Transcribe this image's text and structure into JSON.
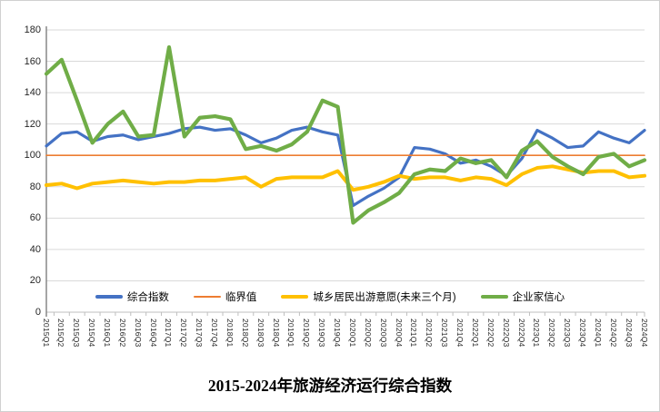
{
  "chart_data": {
    "type": "line",
    "title": "2015-2024年旅游经济运行综合指数",
    "xlabel": "",
    "ylabel": "",
    "ylim": [
      0,
      180
    ],
    "ytick_step": 20,
    "y_ticks": [
      "0",
      "20",
      "40",
      "60",
      "80",
      "100",
      "120",
      "140",
      "160",
      "180"
    ],
    "grid": true,
    "legend_position": "bottom-inside-horizontal",
    "x_label_rotation_deg": 90,
    "categories": [
      "2015Q1",
      "2015Q2",
      "2015Q3",
      "2015Q4",
      "2016Q1",
      "2016Q2",
      "2016Q3",
      "2016Q4",
      "2017Q1",
      "2017Q2",
      "2017Q3",
      "2017Q4",
      "2018Q1",
      "2018Q2",
      "2018Q3",
      "2018Q4",
      "2019Q1",
      "2019Q2",
      "2019Q3",
      "2019Q4",
      "2020Q1",
      "2020Q2",
      "2020Q3",
      "2020Q4",
      "2021Q1",
      "2021Q2",
      "2021Q3",
      "2021Q4",
      "2022Q1",
      "2022Q2",
      "2022Q3",
      "2022Q4",
      "2023Q1",
      "2023Q2",
      "2023Q3",
      "2023Q4",
      "2024Q1",
      "2024Q2",
      "2024Q3",
      "2024Q4"
    ],
    "series": [
      {
        "name": "综合指数",
        "color": "#4472C4",
        "line_width": 3.2,
        "values": [
          106,
          114,
          115,
          109,
          112,
          113,
          110,
          112,
          114,
          117,
          118,
          116,
          117,
          113,
          108,
          111,
          116,
          118,
          115,
          113,
          68,
          74,
          79,
          86,
          105,
          104,
          101,
          95,
          97,
          93,
          87,
          98,
          116,
          111,
          105,
          106,
          115,
          111,
          108,
          116
        ]
      },
      {
        "name": "临界值",
        "color": "#ED7D31",
        "line_width": 1.6,
        "values": [
          100,
          100,
          100,
          100,
          100,
          100,
          100,
          100,
          100,
          100,
          100,
          100,
          100,
          100,
          100,
          100,
          100,
          100,
          100,
          100,
          100,
          100,
          100,
          100,
          100,
          100,
          100,
          100,
          100,
          100,
          100,
          100,
          100,
          100,
          100,
          100,
          100,
          100,
          100,
          100
        ]
      },
      {
        "name": "城乡居民出游意愿(未来三个月)",
        "color": "#FFC000",
        "line_width": 4,
        "values": [
          81,
          82,
          79,
          82,
          83,
          84,
          83,
          82,
          83,
          83,
          84,
          84,
          85,
          86,
          80,
          85,
          86,
          86,
          86,
          90,
          78,
          80,
          83,
          87,
          85,
          86,
          86,
          84,
          86,
          85,
          81,
          88,
          92,
          93,
          91,
          89,
          90,
          90,
          86,
          87
        ]
      },
      {
        "name": "企业家信心",
        "color": "#70AD47",
        "line_width": 4.2,
        "values": [
          152,
          161,
          135,
          108,
          120,
          128,
          112,
          113,
          169,
          112,
          124,
          125,
          123,
          104,
          106,
          103,
          107,
          115,
          135,
          131,
          57,
          65,
          70,
          76,
          88,
          91,
          90,
          98,
          95,
          97,
          86,
          103,
          109,
          99,
          93,
          88,
          99,
          101,
          93,
          97
        ]
      }
    ],
    "plot_colors": {
      "gridline": "#d9d9d9",
      "y_axis_line": "#7f7f7f",
      "x_axis_line": "#bfbfbf",
      "background": "#ffffff"
    }
  }
}
